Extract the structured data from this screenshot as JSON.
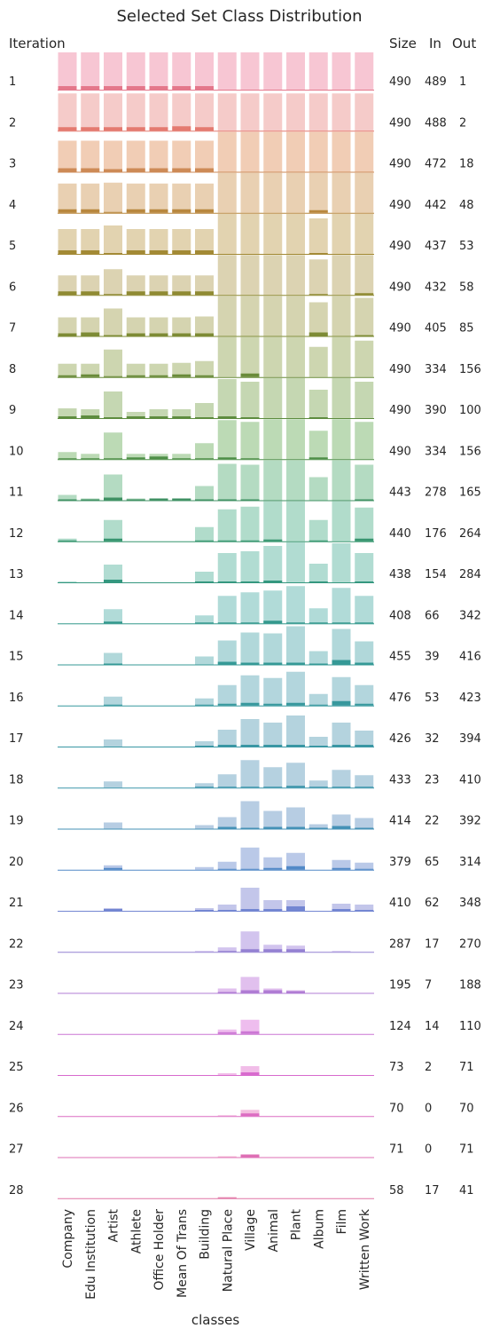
{
  "chart_data": {
    "type": "bar",
    "title": "Selected Set Class Distribution",
    "row_label": "Iteration",
    "xlabel": "classes",
    "categories": [
      "Company",
      "Edu Institution",
      "Artist",
      "Athlete",
      "Office Holder",
      "Mean Of Trans",
      "Building",
      "Natural Place",
      "Village",
      "Animal",
      "Plant",
      "Album",
      "Film",
      "Written Work"
    ],
    "table_headers": [
      "Size",
      "In",
      "Out"
    ],
    "iterations": [
      {
        "iter": "1",
        "size": 490,
        "in": 489,
        "out": 1,
        "bar_color": "#f7c6d3",
        "in_color": "#e4788b",
        "values": [
          42,
          42,
          42,
          42,
          42,
          42,
          42,
          42,
          42,
          42,
          42,
          42,
          42,
          42
        ],
        "in_values": [
          4,
          4,
          4,
          4,
          4,
          4,
          4,
          0,
          0,
          0,
          0,
          0,
          0,
          0
        ]
      },
      {
        "iter": "2",
        "size": 490,
        "in": 488,
        "out": 2,
        "bar_color": "#f5cbc9",
        "in_color": "#e47a70",
        "values": [
          42,
          42,
          42,
          42,
          42,
          42,
          42,
          42,
          42,
          42,
          42,
          42,
          42,
          42
        ],
        "in_values": [
          4,
          4,
          4,
          4,
          4,
          5,
          4,
          0,
          0,
          0,
          0,
          0,
          0,
          0
        ]
      },
      {
        "iter": "3",
        "size": 490,
        "in": 472,
        "out": 18,
        "bar_color": "#f1cdb5",
        "in_color": "#cd8a56",
        "values": [
          35,
          35,
          35,
          35,
          35,
          35,
          35,
          45,
          45,
          45,
          45,
          45,
          45,
          45
        ],
        "in_values": [
          4,
          4,
          3,
          4,
          4,
          4,
          4,
          0,
          0,
          0,
          0,
          0,
          0,
          0
        ]
      },
      {
        "iter": "4",
        "size": 490,
        "in": 442,
        "out": 48,
        "bar_color": "#e9d0b2",
        "in_color": "#b8873e",
        "values": [
          33,
          33,
          34,
          33,
          33,
          33,
          33,
          45,
          45,
          45,
          45,
          45,
          45,
          45
        ],
        "in_values": [
          4,
          4,
          1,
          4,
          4,
          4,
          4,
          0,
          0,
          0,
          0,
          3,
          0,
          0
        ]
      },
      {
        "iter": "5",
        "size": 490,
        "in": 437,
        "out": 53,
        "bar_color": "#e2d3b0",
        "in_color": "#a38a35",
        "values": [
          28,
          28,
          32,
          28,
          28,
          28,
          28,
          45,
          45,
          45,
          45,
          40,
          45,
          45
        ],
        "in_values": [
          4,
          4,
          1,
          4,
          4,
          4,
          4,
          0,
          0,
          0,
          0,
          1,
          0,
          0
        ]
      },
      {
        "iter": "6",
        "size": 490,
        "in": 432,
        "out": 58,
        "bar_color": "#dcd3b2",
        "in_color": "#8f8a33",
        "values": [
          22,
          22,
          29,
          22,
          22,
          22,
          22,
          45,
          45,
          45,
          45,
          40,
          45,
          45
        ],
        "in_values": [
          4,
          4,
          1,
          4,
          4,
          4,
          4,
          0,
          0,
          0,
          0,
          1,
          0,
          2
        ]
      },
      {
        "iter": "7",
        "size": 490,
        "in": 405,
        "out": 85,
        "bar_color": "#d5d4b0",
        "in_color": "#7d8b35",
        "values": [
          21,
          21,
          31,
          21,
          21,
          21,
          22,
          45,
          45,
          45,
          45,
          38,
          45,
          43
        ],
        "in_values": [
          3,
          4,
          1,
          3,
          3,
          3,
          3,
          0,
          0,
          0,
          0,
          4,
          0,
          1
        ]
      },
      {
        "iter": "8",
        "size": 490,
        "in": 334,
        "out": 156,
        "bar_color": "#cdd6b0",
        "in_color": "#6a8b3a",
        "values": [
          15,
          15,
          31,
          15,
          15,
          16,
          18,
          45,
          45,
          45,
          45,
          34,
          45,
          41
        ],
        "in_values": [
          2,
          3,
          1,
          2,
          2,
          3,
          2,
          0,
          4,
          0,
          0,
          0,
          0,
          0
        ]
      },
      {
        "iter": "9",
        "size": 490,
        "in": 390,
        "out": 100,
        "bar_color": "#c5d7b2",
        "in_color": "#5e8c3f",
        "values": [
          11,
          10,
          30,
          7,
          10,
          10,
          17,
          44,
          41,
          45,
          45,
          32,
          45,
          41
        ],
        "in_values": [
          2,
          3,
          1,
          2,
          2,
          2,
          1,
          2,
          1,
          0,
          0,
          1,
          0,
          0
        ]
      },
      {
        "iter": "10",
        "size": 490,
        "in": 334,
        "out": 156,
        "bar_color": "#bcdab5",
        "in_color": "#4f8f48",
        "values": [
          8,
          6,
          30,
          6,
          6,
          6,
          18,
          44,
          42,
          45,
          45,
          32,
          45,
          42
        ],
        "in_values": [
          1,
          1,
          1,
          2,
          3,
          1,
          1,
          2,
          1,
          0,
          0,
          2,
          0,
          0
        ]
      },
      {
        "iter": "11",
        "size": 443,
        "in": 278,
        "out": 165,
        "bar_color": "#b4dbc2",
        "in_color": "#3f9163",
        "values": [
          6,
          2,
          29,
          2,
          2,
          2,
          16,
          41,
          40,
          45,
          45,
          26,
          45,
          40
        ],
        "in_values": [
          1,
          1,
          3,
          1,
          2,
          2,
          1,
          1,
          1,
          0,
          0,
          0,
          0,
          1
        ]
      },
      {
        "iter": "12",
        "size": 440,
        "in": 176,
        "out": 264,
        "bar_color": "#b1dccb",
        "in_color": "#37956f",
        "values": [
          3,
          0,
          24,
          0,
          0,
          0,
          16,
          36,
          39,
          45,
          45,
          24,
          45,
          38
        ],
        "in_values": [
          1,
          0,
          3,
          0,
          0,
          0,
          1,
          1,
          1,
          2,
          0,
          1,
          0,
          3
        ]
      },
      {
        "iter": "13",
        "size": 438,
        "in": 154,
        "out": 284,
        "bar_color": "#b1dcd2",
        "in_color": "#34977f",
        "values": [
          1,
          0,
          20,
          0,
          0,
          0,
          12,
          33,
          35,
          41,
          45,
          21,
          44,
          33
        ],
        "in_values": [
          0,
          0,
          3,
          0,
          0,
          0,
          1,
          1,
          1,
          2,
          0,
          1,
          0,
          1
        ]
      },
      {
        "iter": "14",
        "size": 408,
        "in": 66,
        "out": 342,
        "bar_color": "#b1dbd8",
        "in_color": "#33988c",
        "values": [
          0,
          0,
          16,
          0,
          0,
          0,
          9,
          31,
          35,
          37,
          42,
          17,
          40,
          31
        ],
        "in_values": [
          0,
          0,
          2,
          0,
          0,
          0,
          1,
          1,
          1,
          3,
          1,
          1,
          1,
          1
        ]
      },
      {
        "iter": "15",
        "size": 455,
        "in": 39,
        "out": 416,
        "bar_color": "#b1d8da",
        "in_color": "#359996",
        "values": [
          0,
          0,
          13,
          0,
          0,
          0,
          9,
          27,
          36,
          35,
          43,
          15,
          40,
          26
        ],
        "in_values": [
          0,
          0,
          1,
          0,
          0,
          0,
          0,
          3,
          2,
          2,
          2,
          1,
          5,
          2
        ]
      },
      {
        "iter": "16",
        "size": 476,
        "in": 53,
        "out": 423,
        "bar_color": "#b3d6dd",
        "in_color": "#37989d",
        "values": [
          0,
          0,
          10,
          0,
          0,
          0,
          8,
          23,
          34,
          31,
          38,
          13,
          32,
          23
        ],
        "in_values": [
          0,
          0,
          1,
          0,
          0,
          0,
          1,
          2,
          3,
          2,
          3,
          1,
          5,
          2
        ]
      },
      {
        "iter": "17",
        "size": 426,
        "in": 32,
        "out": 394,
        "bar_color": "#b4d3de",
        "in_color": "#3a97a4",
        "values": [
          0,
          0,
          8,
          0,
          0,
          0,
          6,
          19,
          31,
          27,
          35,
          11,
          27,
          18
        ],
        "in_values": [
          0,
          0,
          0,
          0,
          0,
          0,
          1,
          2,
          2,
          2,
          2,
          1,
          2,
          2
        ]
      },
      {
        "iter": "18",
        "size": 433,
        "in": 23,
        "out": 410,
        "bar_color": "#b5d1e0",
        "in_color": "#3d95ab",
        "values": [
          0,
          0,
          7,
          0,
          0,
          0,
          5,
          15,
          31,
          23,
          28,
          8,
          20,
          14
        ],
        "in_values": [
          0,
          0,
          0,
          0,
          0,
          0,
          1,
          1,
          1,
          1,
          2,
          1,
          1,
          1
        ]
      },
      {
        "iter": "19",
        "size": 414,
        "in": 22,
        "out": 392,
        "bar_color": "#b7cde3",
        "in_color": "#4491b6",
        "values": [
          0,
          0,
          7,
          0,
          0,
          0,
          4,
          13,
          31,
          20,
          24,
          5,
          16,
          12
        ],
        "in_values": [
          0,
          0,
          0,
          0,
          0,
          0,
          0,
          2,
          1,
          2,
          2,
          1,
          3,
          1
        ]
      },
      {
        "iter": "20",
        "size": 379,
        "in": 65,
        "out": 314,
        "bar_color": "#bac9e8",
        "in_color": "#5289c7",
        "values": [
          0,
          0,
          5,
          0,
          0,
          0,
          3,
          9,
          25,
          14,
          19,
          0,
          11,
          8
        ],
        "in_values": [
          0,
          0,
          2,
          0,
          0,
          0,
          0,
          1,
          1,
          2,
          4,
          0,
          2,
          1
        ]
      },
      {
        "iter": "21",
        "size": 410,
        "in": 62,
        "out": 348,
        "bar_color": "#c3c6ea",
        "in_color": "#7386d2",
        "values": [
          0,
          0,
          3,
          0,
          0,
          0,
          3,
          7,
          26,
          12,
          12,
          0,
          8,
          7
        ],
        "in_values": [
          0,
          0,
          2,
          0,
          0,
          0,
          1,
          1,
          2,
          2,
          5,
          0,
          2,
          1
        ]
      },
      {
        "iter": "22",
        "size": 287,
        "in": 17,
        "out": 270,
        "bar_color": "#d2c4ee",
        "in_color": "#9481d2",
        "values": [
          0,
          0,
          0,
          0,
          0,
          0,
          1,
          5,
          23,
          8,
          7,
          0,
          1,
          0
        ],
        "in_values": [
          0,
          0,
          0,
          0,
          0,
          0,
          0,
          1,
          3,
          3,
          3,
          0,
          0,
          0
        ]
      },
      {
        "iter": "23",
        "size": 195,
        "in": 7,
        "out": 188,
        "bar_color": "#e1c0ee",
        "in_color": "#b07cd4",
        "values": [
          0,
          0,
          0,
          0,
          0,
          0,
          0,
          5,
          18,
          5,
          3,
          0,
          0,
          0
        ],
        "in_values": [
          0,
          0,
          0,
          0,
          0,
          0,
          0,
          1,
          3,
          3,
          2,
          0,
          0,
          0
        ]
      },
      {
        "iter": "24",
        "size": 124,
        "in": 14,
        "out": 110,
        "bar_color": "#eebdee",
        "in_color": "#cc77d4",
        "values": [
          0,
          0,
          0,
          0,
          0,
          0,
          0,
          5,
          16,
          0,
          0,
          0,
          0,
          0
        ],
        "in_values": [
          0,
          0,
          0,
          0,
          0,
          0,
          0,
          2,
          3,
          0,
          0,
          0,
          0,
          0
        ]
      },
      {
        "iter": "25",
        "size": 73,
        "in": 2,
        "out": 71,
        "bar_color": "#f1bde8",
        "in_color": "#d86bce",
        "values": [
          0,
          0,
          0,
          0,
          0,
          0,
          0,
          2,
          10,
          0,
          0,
          0,
          0,
          0
        ],
        "in_values": [
          0,
          0,
          0,
          0,
          0,
          0,
          0,
          0,
          3,
          0,
          0,
          0,
          0,
          0
        ]
      },
      {
        "iter": "26",
        "size": 70,
        "in": 0,
        "out": 70,
        "bar_color": "#f3bedf",
        "in_color": "#dc6cc2",
        "values": [
          0,
          0,
          0,
          0,
          0,
          0,
          0,
          1,
          7,
          0,
          0,
          0,
          0,
          0
        ],
        "in_values": [
          0,
          0,
          0,
          0,
          0,
          0,
          0,
          0,
          3,
          0,
          0,
          0,
          0,
          0
        ]
      },
      {
        "iter": "27",
        "size": 71,
        "in": 0,
        "out": 71,
        "bar_color": "#f5c0d9",
        "in_color": "#de6fb5",
        "values": [
          0,
          0,
          0,
          0,
          0,
          0,
          0,
          1,
          3,
          0,
          0,
          0,
          0,
          0
        ],
        "in_values": [
          0,
          0,
          0,
          0,
          0,
          0,
          0,
          0,
          3,
          0,
          0,
          0,
          0,
          0
        ]
      },
      {
        "iter": "28",
        "size": 58,
        "in": 17,
        "out": 41,
        "bar_color": "#f6c3d3",
        "in_color": "#e176a6",
        "values": [
          0,
          0,
          0,
          0,
          0,
          0,
          0,
          1,
          0,
          0,
          0,
          0,
          0,
          0
        ],
        "in_values": [
          0,
          0,
          0,
          0,
          0,
          0,
          0,
          1,
          0,
          0,
          0,
          0,
          0,
          0
        ]
      }
    ]
  }
}
